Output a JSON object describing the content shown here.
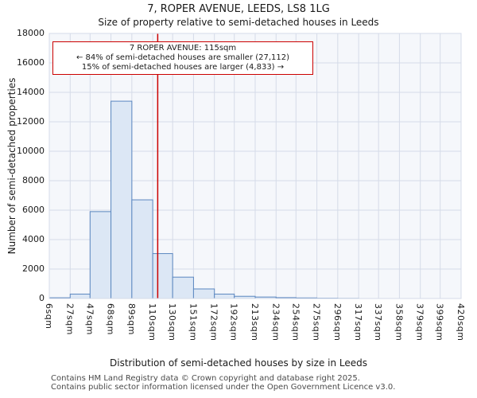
{
  "title": "7, ROPER AVENUE, LEEDS, LS8 1LG",
  "subtitle": "Size of property relative to semi-detached houses in Leeds",
  "annotation": {
    "line1": "7 ROPER AVENUE: 115sqm",
    "line2": "← 84% of semi-detached houses are smaller (27,112)",
    "line3": "15% of semi-detached houses are larger (4,833) →"
  },
  "footer": {
    "line1": "Contains HM Land Registry data © Crown copyright and database right 2025.",
    "line2": "Contains public sector information licensed under the Open Government Licence v3.0."
  },
  "chart_data": {
    "type": "bar",
    "title": "7, ROPER AVENUE, LEEDS, LS8 1LG",
    "subtitle": "Size of property relative to semi-detached houses in Leeds",
    "xlabel": "Distribution of semi-detached houses by size in Leeds",
    "ylabel": "Number of semi-detached properties",
    "x_tick_labels": [
      "6sqm",
      "27sqm",
      "47sqm",
      "68sqm",
      "89sqm",
      "110sqm",
      "130sqm",
      "151sqm",
      "172sqm",
      "192sqm",
      "213sqm",
      "234sqm",
      "254sqm",
      "275sqm",
      "296sqm",
      "317sqm",
      "337sqm",
      "358sqm",
      "379sqm",
      "399sqm",
      "420sqm"
    ],
    "bin_edges_sqm": [
      6,
      27,
      47,
      68,
      89,
      110,
      130,
      151,
      172,
      192,
      213,
      234,
      254,
      275,
      296,
      317,
      337,
      358,
      379,
      399,
      420
    ],
    "values": [
      50,
      300,
      5900,
      13400,
      6700,
      3050,
      1450,
      650,
      300,
      150,
      100,
      60,
      40,
      20,
      10,
      0,
      0,
      0,
      0,
      0
    ],
    "ylim": [
      0,
      18000
    ],
    "y_tick_step": 2000,
    "y_tick_labels": [
      "0",
      "2000",
      "4000",
      "6000",
      "8000",
      "10000",
      "12000",
      "14000",
      "16000",
      "18000"
    ],
    "marker_value_sqm": 115,
    "marker_color": "#cc0000",
    "bar_fill": "#dce7f5",
    "bar_stroke": "#5b87c0",
    "grid": true,
    "grid_color": "#d5dbe8",
    "plot_bg": "#f5f7fb",
    "legend": "none"
  }
}
